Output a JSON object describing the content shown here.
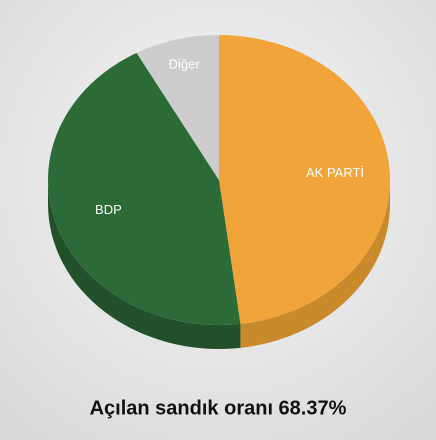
{
  "chart_data": {
    "type": "pie3d",
    "title": "Açılan sandık oranı 68.37%",
    "categories": [
      "AK PARTİ",
      "BDP",
      "Diğer"
    ],
    "values": [
      48,
      44,
      8
    ],
    "colors": [
      "#f0a43a",
      "#2c6a38",
      "#cdcdcd"
    ],
    "side_colors": [
      "#c98a2c",
      "#21502a",
      "#a9a9a9"
    ]
  }
}
